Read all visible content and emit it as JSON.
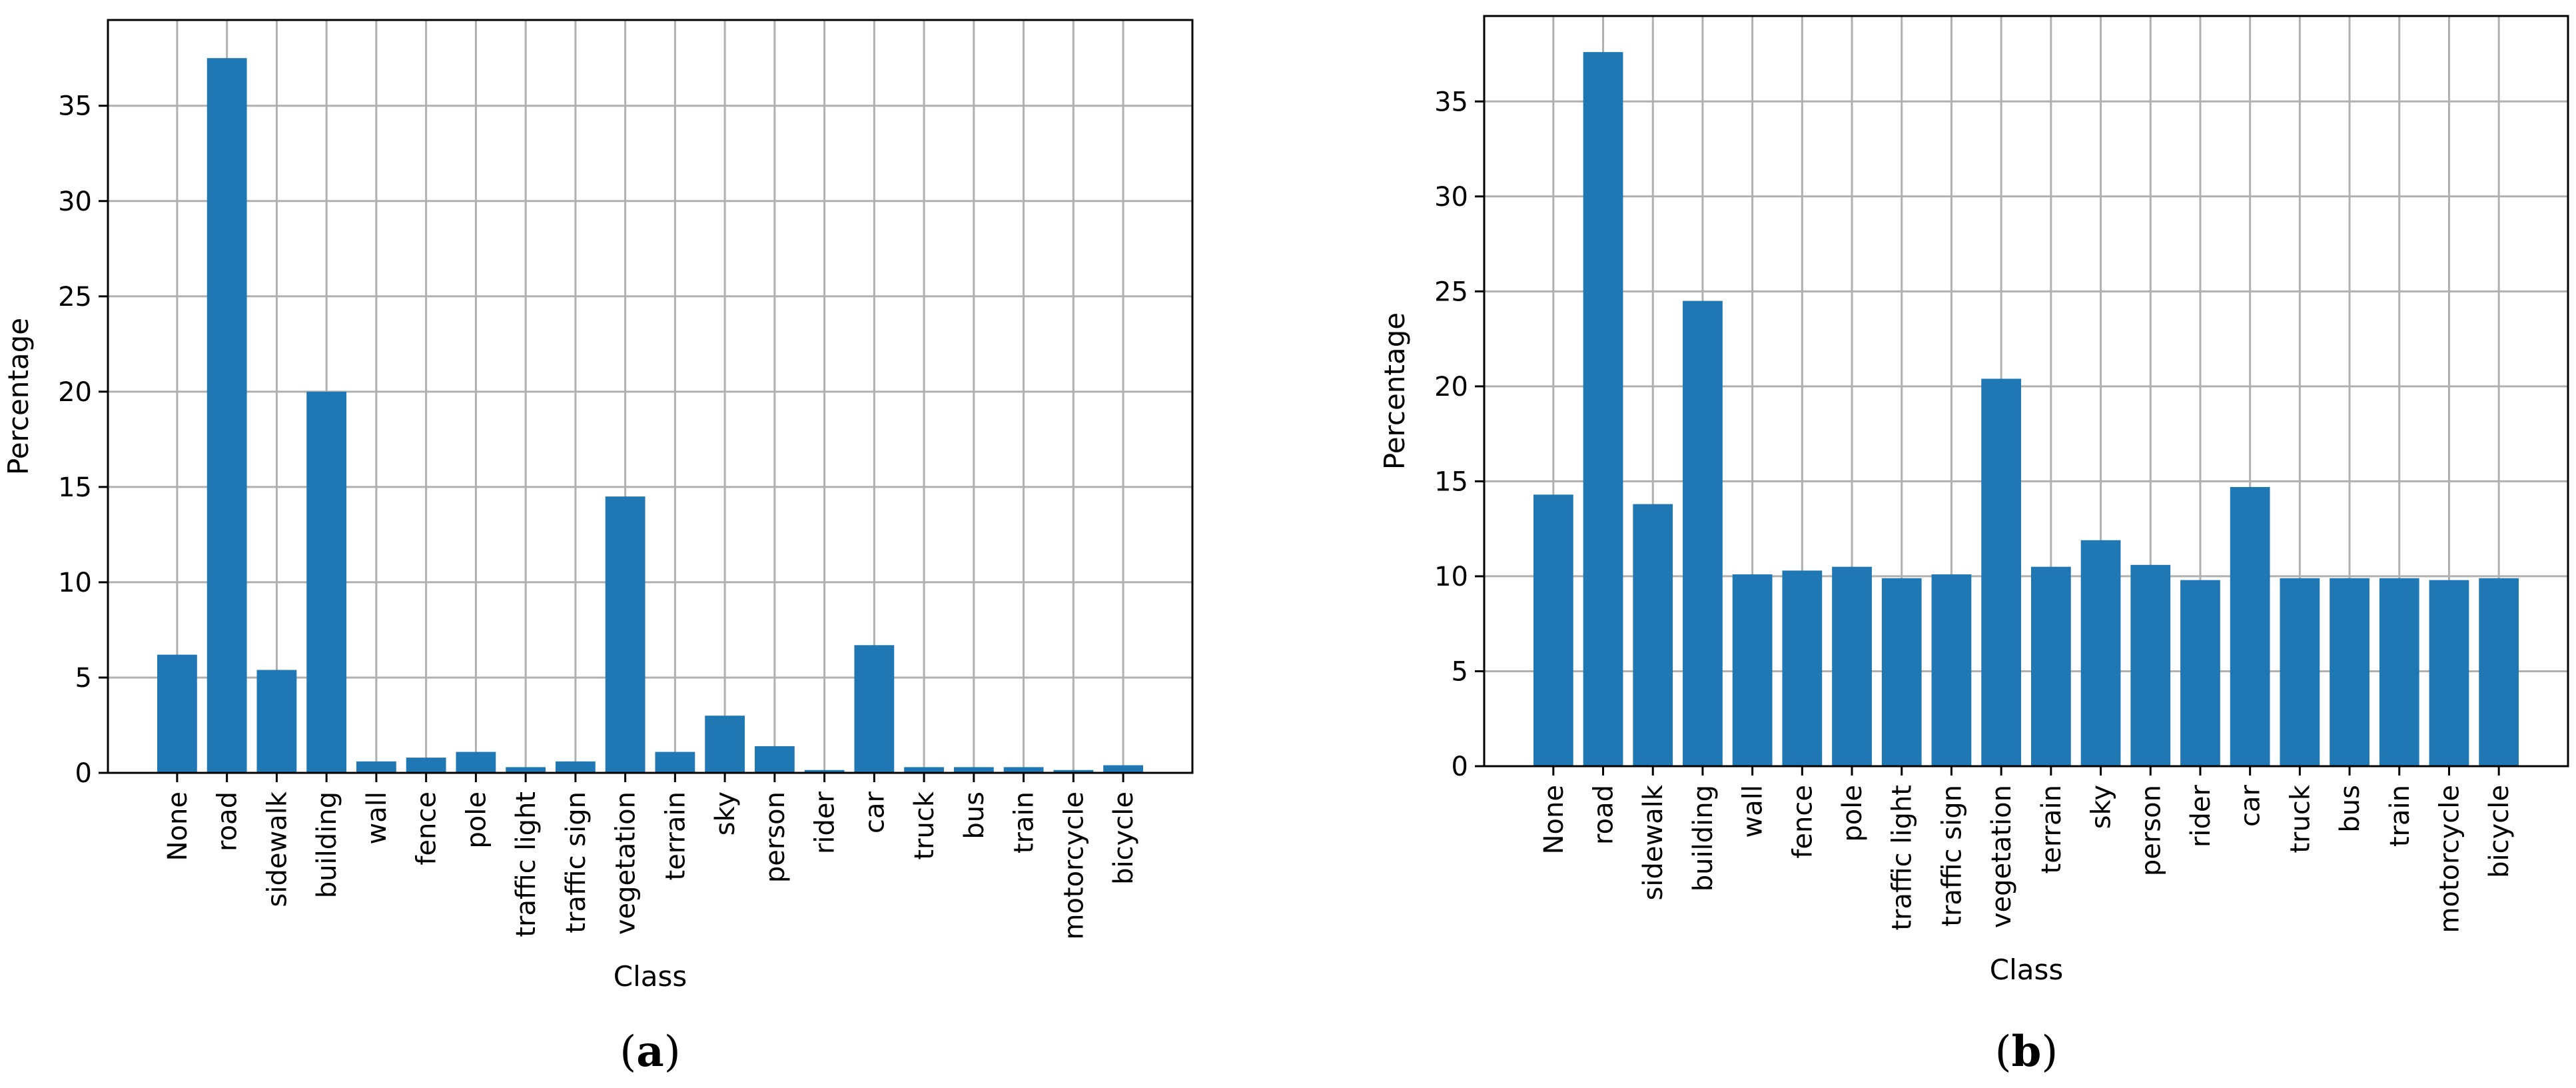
{
  "style": {
    "bar_color": "#1f77b4",
    "grid": true
  },
  "chart_data": [
    {
      "type": "bar",
      "panel_label": "a",
      "xlabel": "Class",
      "ylabel": "Percentage",
      "ylim": [
        0,
        39.5
      ],
      "yticks": [
        0,
        5,
        10,
        15,
        20,
        25,
        30,
        35
      ],
      "categories": [
        "None",
        "road",
        "sidewalk",
        "building",
        "wall",
        "fence",
        "pole",
        "traffic light",
        "traffic sign",
        "vegetation",
        "terrain",
        "sky",
        "person",
        "rider",
        "car",
        "truck",
        "bus",
        "train",
        "motorcycle",
        "bicycle"
      ],
      "values": [
        6.2,
        37.5,
        5.4,
        20.0,
        0.6,
        0.8,
        1.1,
        0.3,
        0.6,
        14.5,
        1.1,
        3.0,
        1.4,
        0.15,
        6.7,
        0.3,
        0.3,
        0.3,
        0.15,
        0.4
      ]
    },
    {
      "type": "bar",
      "panel_label": "b",
      "xlabel": "Class",
      "ylabel": "Percentage",
      "ylim": [
        0,
        39.5
      ],
      "yticks": [
        0,
        5,
        10,
        15,
        20,
        25,
        30,
        35
      ],
      "categories": [
        "None",
        "road",
        "sidewalk",
        "building",
        "wall",
        "fence",
        "pole",
        "traffic light",
        "traffic sign",
        "vegetation",
        "terrain",
        "sky",
        "person",
        "rider",
        "car",
        "truck",
        "bus",
        "train",
        "motorcycle",
        "bicycle"
      ],
      "values": [
        14.3,
        37.6,
        13.8,
        24.5,
        10.1,
        10.3,
        10.5,
        9.9,
        10.1,
        20.4,
        10.5,
        11.9,
        10.6,
        9.8,
        14.7,
        9.9,
        9.9,
        9.9,
        9.8,
        9.9
      ]
    }
  ]
}
